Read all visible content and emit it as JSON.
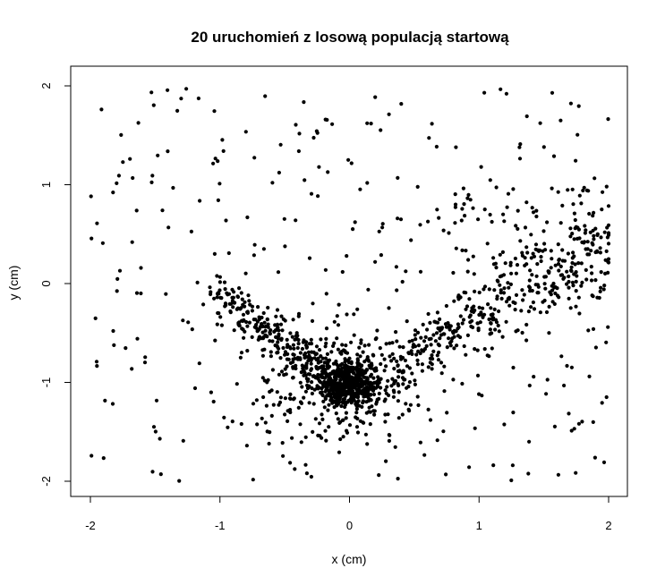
{
  "chart_data": {
    "type": "scatter",
    "title": "20 uruchomień z losową populacją startową",
    "xlabel": "x (cm)",
    "ylabel": "y (cm)",
    "xlim": [
      -2.15,
      2.15
    ],
    "ylim": [
      -2.15,
      2.15
    ],
    "x_ticks": [
      -2,
      -1,
      0,
      1,
      2
    ],
    "y_ticks": [
      -2,
      -1,
      0,
      1,
      2
    ],
    "x_tick_labels": [
      "-2",
      "-1",
      "0",
      "1",
      "2"
    ],
    "y_tick_labels": [
      "-2",
      "-1",
      "0",
      "1",
      "2"
    ],
    "grid": false,
    "legend": "none",
    "point_color": "#000000",
    "point_count": 1800,
    "point_distribution": {
      "dense_cluster_center": [
        0.0,
        -1.0
      ],
      "arm_left": {
        "from": [
          -1.0,
          -0.1
        ],
        "to": [
          -0.2,
          -0.9
        ]
      },
      "arm_right": {
        "from": [
          0.3,
          -0.8
        ],
        "to": [
          2.0,
          0.4
        ]
      },
      "background": "uniform over [-2,2] x [-2,2]"
    }
  }
}
